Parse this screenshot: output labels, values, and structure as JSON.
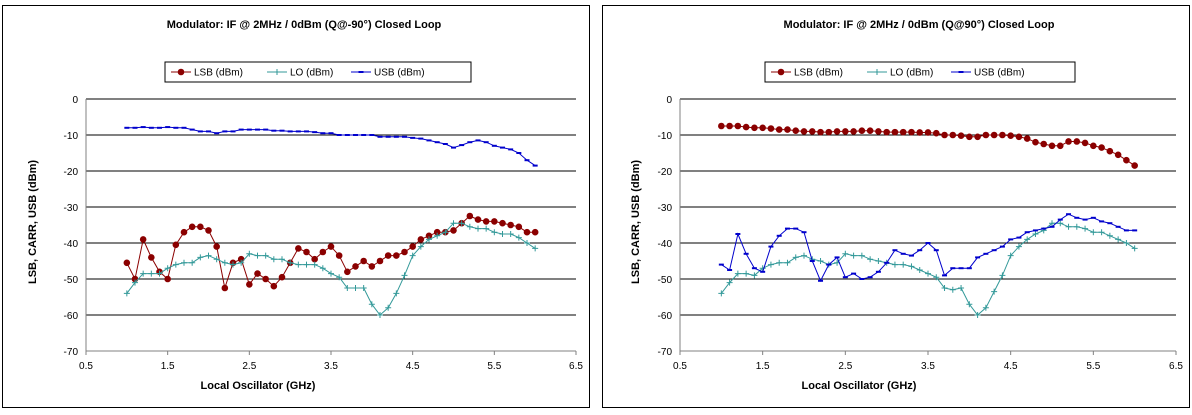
{
  "chart_data": [
    {
      "type": "line",
      "title": "Modulator:  IF @ 2MHz / 0dBm  (Q@-90°) Closed Loop",
      "xlabel": "Local Oscillator (GHz)",
      "ylabel": "LSB, CARR, USB (dBm)",
      "xlim": [
        0.5,
        6.5
      ],
      "ylim": [
        -70,
        0
      ],
      "xticks": [
        "0.5",
        "1.5",
        "2.5",
        "3.5",
        "4.5",
        "5.5",
        "6.5"
      ],
      "yticks": [
        "0",
        "-10",
        "-20",
        "-30",
        "-40",
        "-50",
        "-60",
        "-70"
      ],
      "grid": "horizontal",
      "legend_position": "top",
      "series": [
        {
          "name": "LSB (dBm)",
          "color": "#8b0000",
          "marker": "circle",
          "x": [
            1.0,
            1.1,
            1.2,
            1.3,
            1.4,
            1.5,
            1.6,
            1.7,
            1.8,
            1.9,
            2.0,
            2.1,
            2.2,
            2.3,
            2.4,
            2.5,
            2.6,
            2.7,
            2.8,
            2.9,
            3.0,
            3.1,
            3.2,
            3.3,
            3.4,
            3.5,
            3.6,
            3.7,
            3.8,
            3.9,
            4.0,
            4.1,
            4.2,
            4.3,
            4.4,
            4.5,
            4.6,
            4.7,
            4.8,
            4.9,
            5.0,
            5.1,
            5.2,
            5.3,
            5.4,
            5.5,
            5.6,
            5.7,
            5.8,
            5.9,
            6.0
          ],
          "y": [
            -45.5,
            -50,
            -39,
            -44,
            -48,
            -50,
            -40.5,
            -37,
            -35.5,
            -35.5,
            -36.5,
            -41,
            -52.5,
            -45.5,
            -44.5,
            -51.5,
            -48.5,
            -50,
            -52,
            -49.5,
            -45.5,
            -41.5,
            -42.5,
            -44.5,
            -42.5,
            -41,
            -43.5,
            -48,
            -46.5,
            -45,
            -46.5,
            -45,
            -43.5,
            -43.5,
            -42.5,
            -41,
            -39,
            -38,
            -37,
            -37,
            -36.5,
            -34.5,
            -32.5,
            -33.5,
            -34,
            -34,
            -34.5,
            -35,
            -35.5,
            -37,
            -37
          ]
        },
        {
          "name": "LO (dBm)",
          "color": "#339999",
          "marker": "plus",
          "x": [
            1.0,
            1.1,
            1.2,
            1.3,
            1.4,
            1.5,
            1.6,
            1.7,
            1.8,
            1.9,
            2.0,
            2.1,
            2.2,
            2.3,
            2.4,
            2.5,
            2.6,
            2.7,
            2.8,
            2.9,
            3.0,
            3.1,
            3.2,
            3.3,
            3.4,
            3.5,
            3.6,
            3.7,
            3.8,
            3.9,
            4.0,
            4.1,
            4.2,
            4.3,
            4.4,
            4.5,
            4.6,
            4.7,
            4.8,
            4.9,
            5.0,
            5.1,
            5.2,
            5.3,
            5.4,
            5.5,
            5.6,
            5.7,
            5.8,
            5.9,
            6.0
          ],
          "y": [
            -54,
            -51,
            -48.5,
            -48.5,
            -48.5,
            -47,
            -46,
            -45.5,
            -45.5,
            -44,
            -43.5,
            -44.5,
            -45.5,
            -46,
            -45.5,
            -43,
            -43.5,
            -43.5,
            -44.5,
            -44.5,
            -45.5,
            -46,
            -46,
            -46,
            -47,
            -48.5,
            -49.5,
            -52.5,
            -52.5,
            -52.5,
            -57,
            -60,
            -58,
            -54,
            -49,
            -43.5,
            -41,
            -39,
            -38,
            -37,
            -34.5,
            -34.5,
            -35.5,
            -36,
            -36,
            -37,
            -37.5,
            -37.5,
            -38.5,
            -40,
            -41.5
          ]
        },
        {
          "name": "USB (dBm)",
          "color": "#0000cc",
          "marker": "dash",
          "x": [
            1.0,
            1.1,
            1.2,
            1.3,
            1.4,
            1.5,
            1.6,
            1.7,
            1.8,
            1.9,
            2.0,
            2.1,
            2.2,
            2.3,
            2.4,
            2.5,
            2.6,
            2.7,
            2.8,
            2.9,
            3.0,
            3.1,
            3.2,
            3.3,
            3.4,
            3.5,
            3.6,
            3.7,
            3.8,
            3.9,
            4.0,
            4.1,
            4.2,
            4.3,
            4.4,
            4.5,
            4.6,
            4.7,
            4.8,
            4.9,
            5.0,
            5.1,
            5.2,
            5.3,
            5.4,
            5.5,
            5.6,
            5.7,
            5.8,
            5.9,
            6.0
          ],
          "y": [
            -8,
            -8,
            -7.8,
            -8,
            -8,
            -7.8,
            -8,
            -8,
            -8.5,
            -9,
            -9,
            -9.5,
            -9,
            -9,
            -8.5,
            -8.5,
            -8.5,
            -8.5,
            -8.8,
            -8.8,
            -9,
            -9,
            -9,
            -9.2,
            -9.5,
            -9.5,
            -10,
            -10,
            -10,
            -10,
            -10,
            -10.5,
            -10.5,
            -10.5,
            -10.5,
            -10.8,
            -11,
            -11.5,
            -12,
            -12.5,
            -13.5,
            -12.8,
            -12,
            -11.5,
            -12,
            -13,
            -13.5,
            -14,
            -15,
            -17,
            -18.5
          ]
        }
      ]
    },
    {
      "type": "line",
      "title": "Modulator:  IF @ 2MHz / 0dBm  (Q@90°) Closed Loop",
      "xlabel": "Local Oscillator (GHz)",
      "ylabel": "LSB, CARR, USB (dBm)",
      "xlim": [
        0.5,
        6.5
      ],
      "ylim": [
        -70,
        0
      ],
      "xticks": [
        "0.5",
        "1.5",
        "2.5",
        "3.5",
        "4.5",
        "5.5",
        "6.5"
      ],
      "yticks": [
        "0",
        "-10",
        "-20",
        "-30",
        "-40",
        "-50",
        "-60",
        "-70"
      ],
      "grid": "horizontal",
      "legend_position": "top",
      "series": [
        {
          "name": "LSB (dBm)",
          "color": "#8b0000",
          "marker": "circle",
          "x": [
            1.0,
            1.1,
            1.2,
            1.3,
            1.4,
            1.5,
            1.6,
            1.7,
            1.8,
            1.9,
            2.0,
            2.1,
            2.2,
            2.3,
            2.4,
            2.5,
            2.6,
            2.7,
            2.8,
            2.9,
            3.0,
            3.1,
            3.2,
            3.3,
            3.4,
            3.5,
            3.6,
            3.7,
            3.8,
            3.9,
            4.0,
            4.1,
            4.2,
            4.3,
            4.4,
            4.5,
            4.6,
            4.7,
            4.8,
            4.9,
            5.0,
            5.1,
            5.2,
            5.3,
            5.4,
            5.5,
            5.6,
            5.7,
            5.8,
            5.9,
            6.0
          ],
          "y": [
            -7.5,
            -7.5,
            -7.5,
            -7.8,
            -8,
            -8,
            -8.2,
            -8.5,
            -8.5,
            -8.8,
            -9,
            -9,
            -9.2,
            -9.2,
            -9,
            -9,
            -9,
            -8.8,
            -8.8,
            -9,
            -9.2,
            -9.2,
            -9.2,
            -9.2,
            -9.3,
            -9.3,
            -9.5,
            -10,
            -10,
            -10.2,
            -10.5,
            -10.5,
            -10,
            -10,
            -10,
            -10.2,
            -10.5,
            -11,
            -12,
            -12.5,
            -13,
            -13,
            -11.8,
            -11.8,
            -12.2,
            -13,
            -13.5,
            -14.5,
            -15.5,
            -17,
            -18.5
          ]
        },
        {
          "name": "LO (dBm)",
          "color": "#339999",
          "marker": "plus",
          "x": [
            1.0,
            1.1,
            1.2,
            1.3,
            1.4,
            1.5,
            1.6,
            1.7,
            1.8,
            1.9,
            2.0,
            2.1,
            2.2,
            2.3,
            2.4,
            2.5,
            2.6,
            2.7,
            2.8,
            2.9,
            3.0,
            3.1,
            3.2,
            3.3,
            3.4,
            3.5,
            3.6,
            3.7,
            3.8,
            3.9,
            4.0,
            4.1,
            4.2,
            4.3,
            4.4,
            4.5,
            4.6,
            4.7,
            4.8,
            4.9,
            5.0,
            5.1,
            5.2,
            5.3,
            5.4,
            5.5,
            5.6,
            5.7,
            5.8,
            5.9,
            6.0
          ],
          "y": [
            -54,
            -51,
            -48.5,
            -48.5,
            -49,
            -47,
            -46,
            -45.5,
            -45.5,
            -44,
            -43.5,
            -44.5,
            -45,
            -46,
            -45.5,
            -43,
            -43.5,
            -43.5,
            -44.5,
            -45,
            -45.5,
            -46,
            -46,
            -46.5,
            -47.5,
            -48.5,
            -49.5,
            -52.5,
            -53,
            -52.5,
            -57,
            -60,
            -58,
            -53.5,
            -49,
            -43.5,
            -41,
            -39,
            -37.5,
            -36.5,
            -34.5,
            -34.5,
            -35.5,
            -35.5,
            -36,
            -37,
            -37,
            -38,
            -39,
            -40,
            -41.5
          ]
        },
        {
          "name": "USB (dBm)",
          "color": "#0000cc",
          "marker": "dash",
          "x": [
            1.0,
            1.1,
            1.2,
            1.3,
            1.4,
            1.5,
            1.6,
            1.7,
            1.8,
            1.9,
            2.0,
            2.1,
            2.2,
            2.3,
            2.4,
            2.5,
            2.6,
            2.7,
            2.8,
            2.9,
            3.0,
            3.1,
            3.2,
            3.3,
            3.4,
            3.5,
            3.6,
            3.7,
            3.8,
            3.9,
            4.0,
            4.1,
            4.2,
            4.3,
            4.4,
            4.5,
            4.6,
            4.7,
            4.8,
            4.9,
            5.0,
            5.1,
            5.2,
            5.3,
            5.4,
            5.5,
            5.6,
            5.7,
            5.8,
            5.9,
            6.0
          ],
          "y": [
            -46,
            -47.5,
            -37.5,
            -43,
            -47,
            -48,
            -41,
            -38,
            -36,
            -36,
            -37,
            -45,
            -50.5,
            -46,
            -44,
            -49.5,
            -48.5,
            -50,
            -49.5,
            -48,
            -45.5,
            -42,
            -43,
            -43.5,
            -42,
            -40,
            -42,
            -49,
            -47,
            -47,
            -47,
            -44,
            -43,
            -42,
            -41,
            -39,
            -38.5,
            -37,
            -36.5,
            -36,
            -35.5,
            -33.5,
            -32,
            -33,
            -33.5,
            -33,
            -34,
            -34.5,
            -35.5,
            -36.5,
            -36.5
          ]
        }
      ]
    }
  ]
}
